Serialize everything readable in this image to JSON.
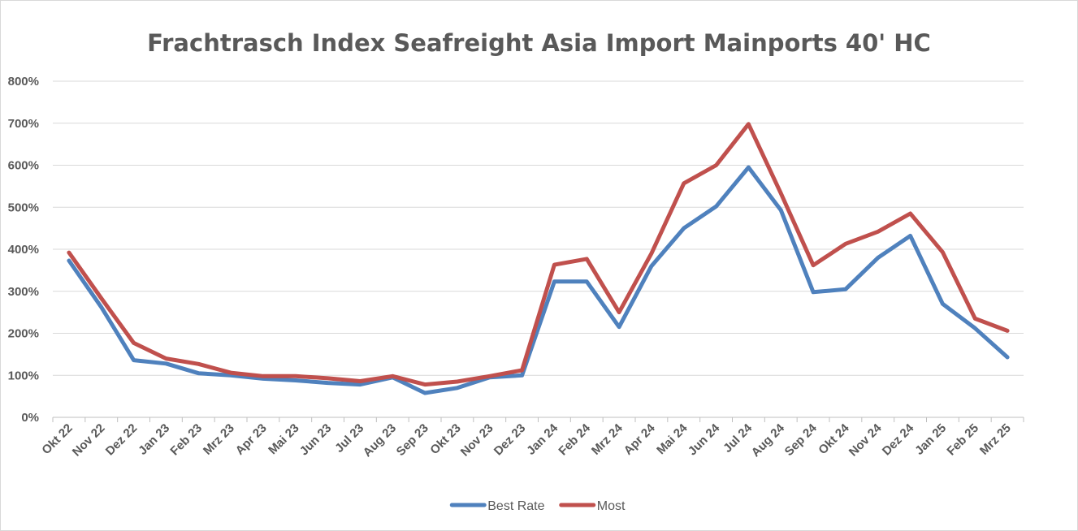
{
  "chart_data": {
    "type": "line",
    "title": "Frachtrasch Index Seafreight Asia Import Mainports 40' HC",
    "xlabel": "",
    "ylabel": "",
    "ylim": [
      0,
      800
    ],
    "y_ticks": [
      "0%",
      "100%",
      "200%",
      "300%",
      "400%",
      "500%",
      "600%",
      "700%",
      "800%"
    ],
    "grid": true,
    "legend_position": "bottom",
    "categories": [
      "Okt 22",
      "Nov 22",
      "Dez 22",
      "Jan 23",
      "Feb 23",
      "Mrz 23",
      "Apr 23",
      "Mai 23",
      "Jun 23",
      "Jul 23",
      "Aug 23",
      "Sep 23",
      "Okt 23",
      "Nov 23",
      "Dez 23",
      "Jan 24",
      "Feb 24",
      "Mrz 24",
      "Apr 24",
      "Mai 24",
      "Jun 24",
      "Jul 24",
      "Aug 24",
      "Sep 24",
      "Okt 24",
      "Nov 24",
      "Dez 24",
      "Jan 25",
      "Feb 25",
      "Mrz 25"
    ],
    "series": [
      {
        "name": "Best Rate",
        "color": "#4f81bd",
        "values": [
          373,
          262,
          136,
          128,
          105,
          100,
          92,
          88,
          82,
          78,
          95,
          58,
          70,
          95,
          100,
          323,
          323,
          215,
          360,
          450,
          502,
          595,
          493,
          298,
          305,
          380,
          432,
          270,
          212,
          143
        ]
      },
      {
        "name": "Most",
        "color": "#c0504d",
        "values": [
          392,
          283,
          177,
          140,
          127,
          106,
          98,
          98,
          93,
          86,
          98,
          78,
          85,
          98,
          112,
          363,
          377,
          250,
          390,
          557,
          600,
          698,
          533,
          362,
          413,
          442,
          485,
          393,
          235,
          206
        ]
      }
    ]
  }
}
